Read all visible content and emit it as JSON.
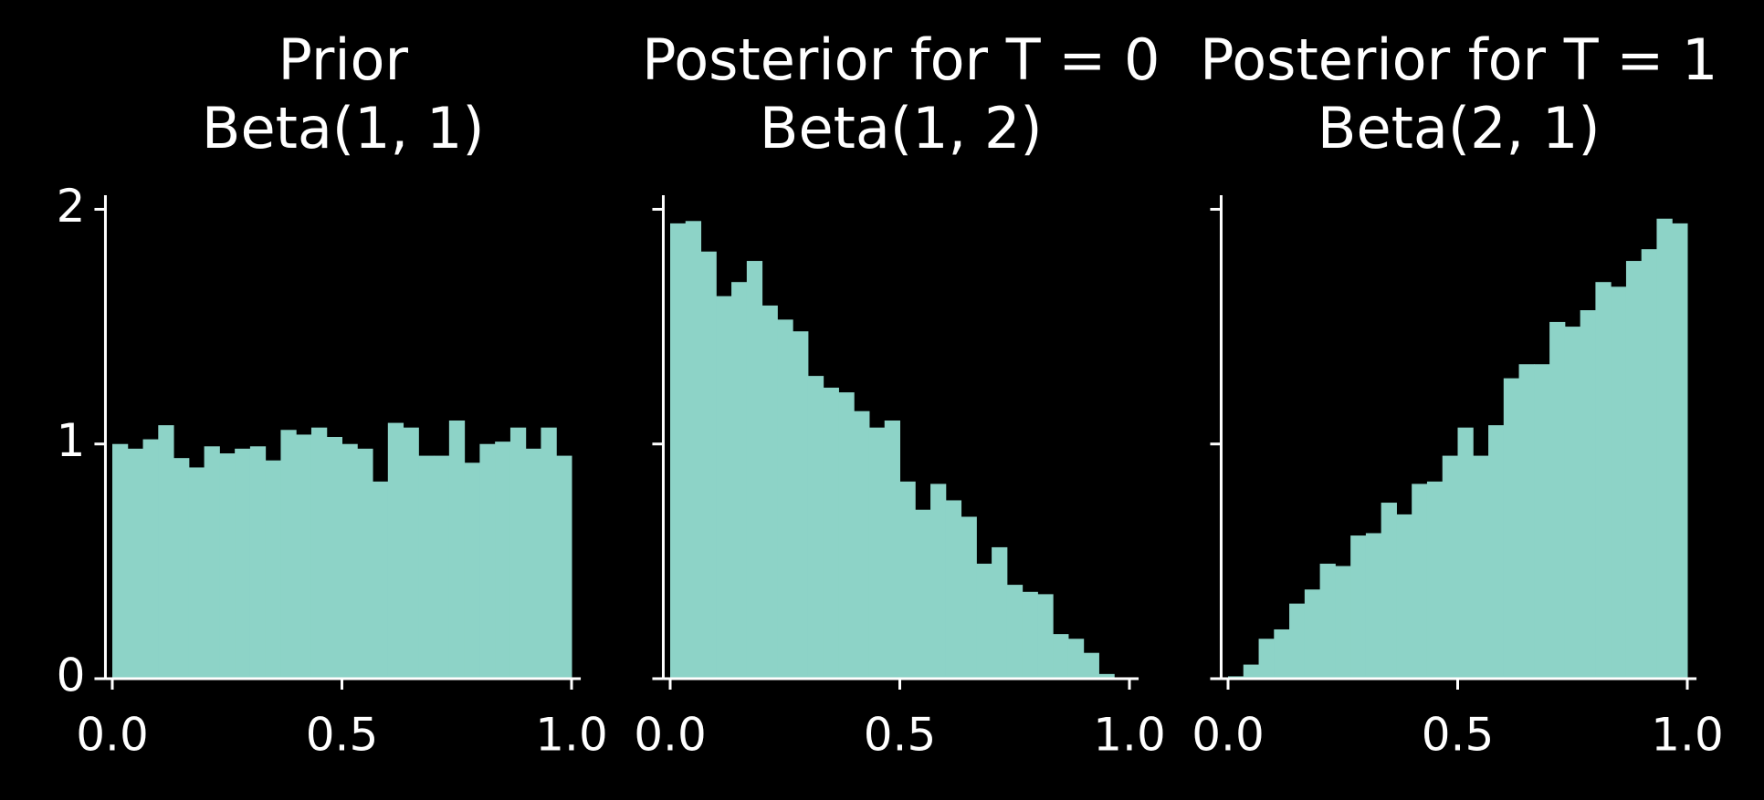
{
  "chart_data": [
    {
      "type": "histogram",
      "title_lines": [
        "Prior",
        "Beta(1, 1)"
      ],
      "color": "#8dd3c7",
      "bins": [
        0,
        0.0333,
        0.0667,
        0.1,
        0.1333,
        0.1667,
        0.2,
        0.2333,
        0.2667,
        0.3,
        0.3333,
        0.3667,
        0.4,
        0.4333,
        0.4667,
        0.5,
        0.5333,
        0.5667,
        0.6,
        0.6333,
        0.6667,
        0.7,
        0.7333,
        0.7667,
        0.8,
        0.8333,
        0.8667,
        0.9,
        0.9333,
        0.9667,
        1
      ],
      "values": [
        1.0,
        0.98,
        1.02,
        1.08,
        0.94,
        0.9,
        0.99,
        0.96,
        0.98,
        0.99,
        0.93,
        1.06,
        1.04,
        1.07,
        1.03,
        1.0,
        0.98,
        0.84,
        1.09,
        1.07,
        0.95,
        0.95,
        1.1,
        0.92,
        1.0,
        1.01,
        1.07,
        0.98,
        1.07,
        0.95
      ],
      "xlim": [
        -0.015,
        1.02
      ],
      "xticks": [
        {
          "value": 0,
          "label": "0.0"
        },
        {
          "value": 0.5,
          "label": "0.5"
        },
        {
          "value": 1,
          "label": "1.0"
        }
      ],
      "ylim": [
        0,
        2.06
      ],
      "yticks": [
        0,
        1,
        2
      ],
      "show_ytick_labels": true
    },
    {
      "type": "histogram",
      "title_lines": [
        "Posterior for T = 0",
        "Beta(1, 2)"
      ],
      "color": "#8dd3c7",
      "bins": [
        0,
        0.0333,
        0.0667,
        0.1,
        0.1333,
        0.1667,
        0.2,
        0.2333,
        0.2667,
        0.3,
        0.3333,
        0.3667,
        0.4,
        0.4333,
        0.4667,
        0.5,
        0.5333,
        0.5667,
        0.6,
        0.6333,
        0.6667,
        0.7,
        0.7333,
        0.7667,
        0.8,
        0.8333,
        0.8667,
        0.9,
        0.9333,
        0.9667,
        1
      ],
      "values": [
        1.94,
        1.95,
        1.82,
        1.63,
        1.69,
        1.78,
        1.59,
        1.53,
        1.48,
        1.29,
        1.24,
        1.22,
        1.14,
        1.07,
        1.1,
        0.84,
        0.72,
        0.83,
        0.76,
        0.69,
        0.49,
        0.56,
        0.4,
        0.37,
        0.36,
        0.19,
        0.17,
        0.11,
        0.02,
        0.005
      ],
      "xlim": [
        -0.015,
        1.02
      ],
      "xticks": [
        {
          "value": 0,
          "label": "0.0"
        },
        {
          "value": 0.5,
          "label": "0.5"
        },
        {
          "value": 1,
          "label": "1.0"
        }
      ],
      "ylim": [
        0,
        2.06
      ],
      "yticks": [
        0,
        1,
        2
      ],
      "show_ytick_labels": false
    },
    {
      "type": "histogram",
      "title_lines": [
        "Posterior for T = 1",
        "Beta(2, 1)"
      ],
      "color": "#8dd3c7",
      "bins": [
        0,
        0.0333,
        0.0667,
        0.1,
        0.1333,
        0.1667,
        0.2,
        0.2333,
        0.2667,
        0.3,
        0.3333,
        0.3667,
        0.4,
        0.4333,
        0.4667,
        0.5,
        0.5333,
        0.5667,
        0.6,
        0.6333,
        0.6667,
        0.7,
        0.7333,
        0.7667,
        0.8,
        0.8333,
        0.8667,
        0.9,
        0.9333,
        0.9667,
        1
      ],
      "values": [
        0.01,
        0.06,
        0.17,
        0.21,
        0.32,
        0.38,
        0.49,
        0.48,
        0.61,
        0.62,
        0.75,
        0.7,
        0.83,
        0.84,
        0.95,
        1.07,
        0.95,
        1.08,
        1.28,
        1.34,
        1.34,
        1.52,
        1.5,
        1.57,
        1.69,
        1.67,
        1.78,
        1.83,
        1.96,
        1.94
      ],
      "xlim": [
        -0.015,
        1.02
      ],
      "xticks": [
        {
          "value": 0,
          "label": "0.0"
        },
        {
          "value": 0.5,
          "label": "0.5"
        },
        {
          "value": 1,
          "label": "1.0"
        }
      ],
      "ylim": [
        0,
        2.06
      ],
      "yticks": [
        0,
        1,
        2
      ],
      "show_ytick_labels": false
    }
  ]
}
